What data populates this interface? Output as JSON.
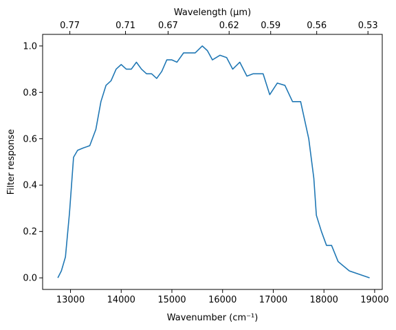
{
  "chart_data": {
    "type": "line",
    "title": "",
    "xlabel": "Wavenumber (cm⁻¹)",
    "ylabel": "Filter response",
    "top_xlabel": "Wavelength (μm)",
    "xlim": [
      12450,
      19150
    ],
    "ylim": [
      -0.05,
      1.05
    ],
    "xticks": [
      13000,
      14000,
      15000,
      16000,
      17000,
      18000,
      19000
    ],
    "yticks": [
      0.0,
      0.2,
      0.4,
      0.6,
      0.8,
      1.0
    ],
    "top_ticks": [
      {
        "label": "0.77",
        "wavenumber": 12987
      },
      {
        "label": "0.71",
        "wavenumber": 14085
      },
      {
        "label": "0.67",
        "wavenumber": 14925
      },
      {
        "label": "0.62",
        "wavenumber": 16129
      },
      {
        "label": "0.59",
        "wavenumber": 16949
      },
      {
        "label": "0.56",
        "wavenumber": 17857
      },
      {
        "label": "0.53",
        "wavenumber": 18868
      }
    ],
    "grid": false,
    "line_color": "#1f77b4",
    "series": [
      {
        "x": [
          12750,
          12820,
          12900,
          12980,
          13060,
          13140,
          13250,
          13380,
          13500,
          13600,
          13700,
          13800,
          13900,
          14000,
          14100,
          14200,
          14300,
          14400,
          14500,
          14600,
          14700,
          14800,
          14900,
          15000,
          15100,
          15230,
          15340,
          15460,
          15600,
          15700,
          15800,
          15950,
          16080,
          16200,
          16340,
          16480,
          16600,
          16700,
          16800,
          16930,
          17080,
          17230,
          17380,
          17540,
          17700,
          17800,
          17850,
          17950,
          18050,
          18150,
          18280,
          18500,
          18900
        ],
        "y": [
          0.0,
          0.03,
          0.09,
          0.28,
          0.52,
          0.55,
          0.56,
          0.57,
          0.64,
          0.76,
          0.83,
          0.85,
          0.9,
          0.92,
          0.9,
          0.9,
          0.93,
          0.9,
          0.88,
          0.88,
          0.86,
          0.89,
          0.94,
          0.94,
          0.93,
          0.97,
          0.97,
          0.97,
          1.0,
          0.98,
          0.94,
          0.96,
          0.95,
          0.9,
          0.93,
          0.87,
          0.88,
          0.88,
          0.88,
          0.79,
          0.84,
          0.83,
          0.76,
          0.76,
          0.6,
          0.43,
          0.27,
          0.2,
          0.14,
          0.14,
          0.07,
          0.03,
          0.0
        ]
      }
    ]
  }
}
